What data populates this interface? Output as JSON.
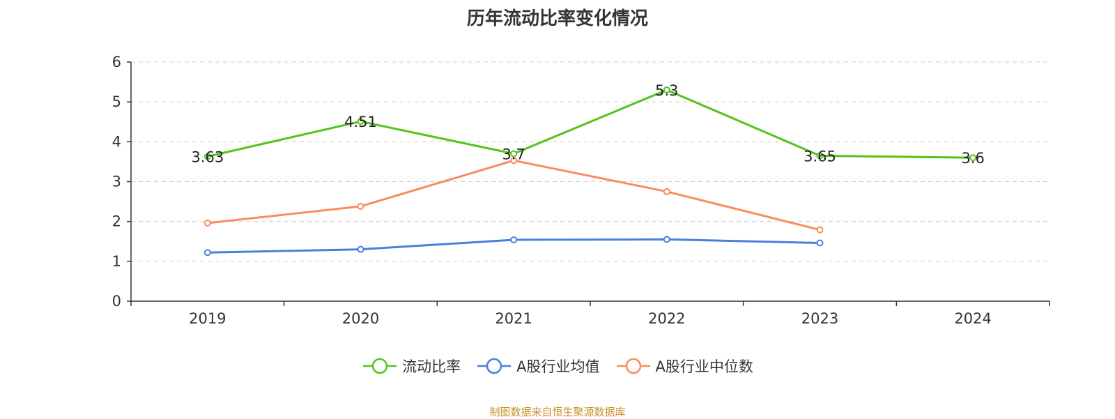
{
  "chart_data": {
    "type": "line",
    "title": "历年流动比率变化情况",
    "categories": [
      "2019",
      "2020",
      "2021",
      "2022",
      "2023",
      "2024"
    ],
    "ylim": [
      0,
      6
    ],
    "yticks": [
      "0",
      "1",
      "2",
      "3",
      "4",
      "5",
      "6"
    ],
    "grid": true,
    "legend_position": "bottom-center",
    "series": [
      {
        "name": "流动比率",
        "color": "#52c41a",
        "show_labels": true,
        "values": [
          3.63,
          4.51,
          3.7,
          5.3,
          3.65,
          3.6
        ],
        "labels": [
          "3.63",
          "4.51",
          "3.7",
          "5.3",
          "3.65",
          "3.6"
        ]
      },
      {
        "name": "A股行业均值",
        "color": "#4a7fdc",
        "show_labels": false,
        "values": [
          1.22,
          1.3,
          1.54,
          1.55,
          1.46,
          null
        ]
      },
      {
        "name": "A股行业中位数",
        "color": "#fa8c5a",
        "show_labels": false,
        "values": [
          1.96,
          2.38,
          3.53,
          2.75,
          1.79,
          null
        ]
      }
    ]
  },
  "source_note": "制图数据来自恒生聚源数据库",
  "source_note_color": "#c8912a"
}
